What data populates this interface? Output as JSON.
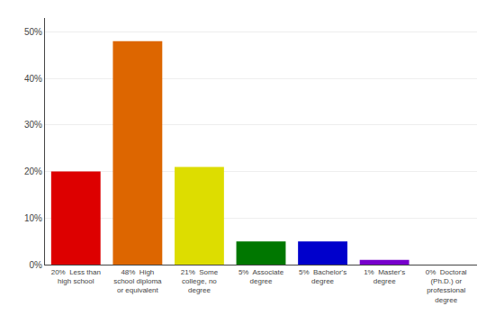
{
  "chart_data": {
    "type": "bar",
    "categories": [
      "20%  Less than\nhigh school",
      "48%  High\nschool diploma\nor equivalent",
      "21%  Some\ncollege, no\ndegree",
      "5%  Associate\ndegree",
      "5%  Bachelor's\ndegree",
      "1%  Master's\ndegree",
      "0%  Doctoral\n(Ph.D.) or\nprofessional\ndegree"
    ],
    "values": [
      20,
      48,
      21,
      5,
      5,
      1,
      0
    ],
    "colors": [
      "#dd0000",
      "#dd6600",
      "#dddd00",
      "#007700",
      "#0000cc",
      "#7700cc",
      "#ee00ee"
    ],
    "ylim": [
      0,
      53
    ],
    "yticks": [
      {
        "value": 0,
        "label": "0%"
      },
      {
        "value": 10,
        "label": "10%"
      },
      {
        "value": 20,
        "label": "20%"
      },
      {
        "value": 30,
        "label": "30%"
      },
      {
        "value": 40,
        "label": "40%"
      },
      {
        "value": 50,
        "label": "50%"
      }
    ],
    "grid": true
  }
}
